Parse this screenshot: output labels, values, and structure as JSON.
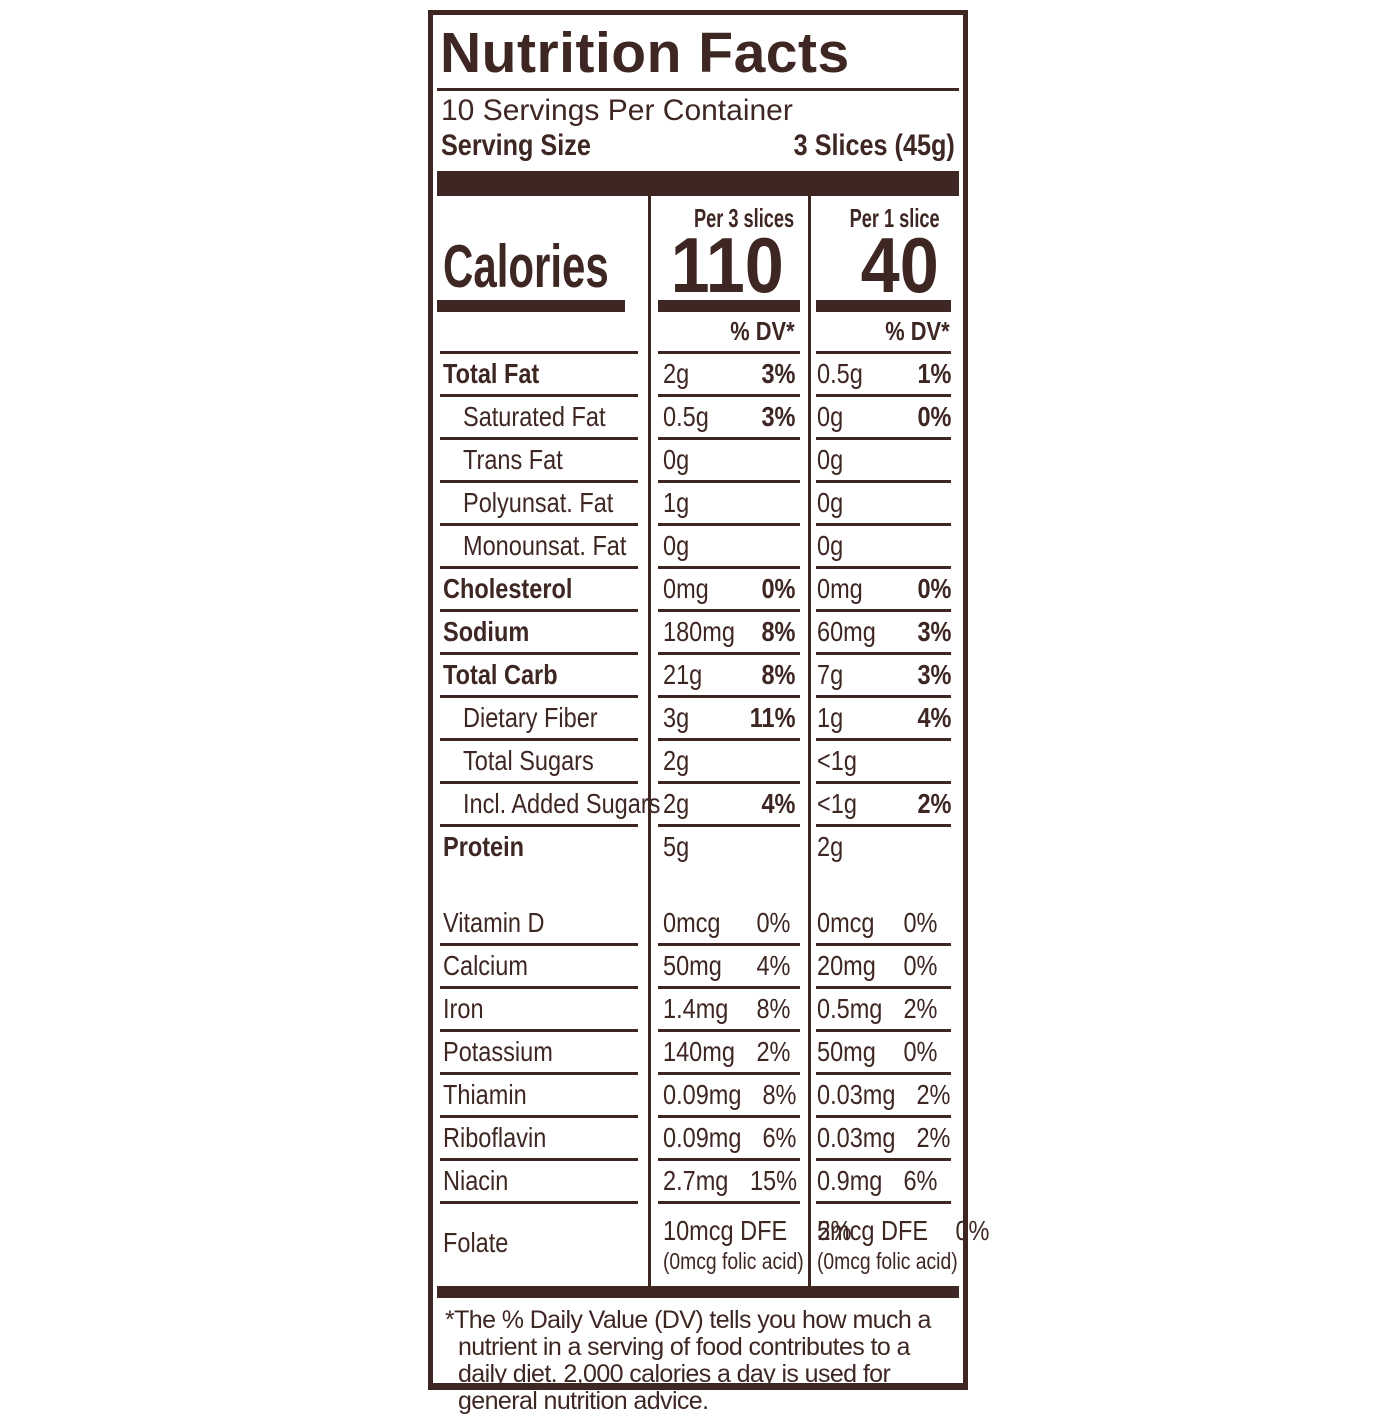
{
  "colors": {
    "ink": "#3E2723",
    "background": "#FFFFFF"
  },
  "label": {
    "title": "Nutrition Facts",
    "servings_per_container": "10 Servings Per Container",
    "serving_size": {
      "label": "Serving Size",
      "value": "3 Slices (45g)"
    },
    "calories_word": "Calories",
    "dv_header": "% DV*",
    "per3": {
      "header": "Per 3 slices",
      "calories": "110"
    },
    "per1": {
      "header": "Per 1 slice",
      "calories": "40"
    },
    "rows": [
      {
        "name": "Total Fat",
        "bold": true,
        "indent": false,
        "per3_amount": "2g",
        "per3_dv": "3%",
        "per1_amount": "0.5g",
        "per1_dv": "1%"
      },
      {
        "name": "Saturated Fat",
        "bold": false,
        "indent": true,
        "per3_amount": "0.5g",
        "per3_dv": "3%",
        "per1_amount": "0g",
        "per1_dv": "0%"
      },
      {
        "name": "Trans Fat",
        "bold": false,
        "indent": true,
        "per3_amount": "0g",
        "per3_dv": "",
        "per1_amount": "0g",
        "per1_dv": ""
      },
      {
        "name": "Polyunsat. Fat",
        "bold": false,
        "indent": true,
        "per3_amount": "1g",
        "per3_dv": "",
        "per1_amount": "0g",
        "per1_dv": ""
      },
      {
        "name": "Monounsat. Fat",
        "bold": false,
        "indent": true,
        "per3_amount": "0g",
        "per3_dv": "",
        "per1_amount": "0g",
        "per1_dv": ""
      },
      {
        "name": "Cholesterol",
        "bold": true,
        "indent": false,
        "per3_amount": "0mg",
        "per3_dv": "0%",
        "per1_amount": "0mg",
        "per1_dv": "0%"
      },
      {
        "name": "Sodium",
        "bold": true,
        "indent": false,
        "per3_amount": "180mg",
        "per3_dv": "8%",
        "per1_amount": "60mg",
        "per1_dv": "3%"
      },
      {
        "name": "Total Carb",
        "bold": true,
        "indent": false,
        "per3_amount": "21g",
        "per3_dv": "8%",
        "per1_amount": "7g",
        "per1_dv": "3%"
      },
      {
        "name": "Dietary Fiber",
        "bold": false,
        "indent": true,
        "per3_amount": "3g",
        "per3_dv": "11%",
        "per1_amount": "1g",
        "per1_dv": "4%"
      },
      {
        "name": "Total Sugars",
        "bold": false,
        "indent": true,
        "per3_amount": "2g",
        "per3_dv": "",
        "per1_amount": "<1g",
        "per1_dv": ""
      },
      {
        "name": "Incl. Added Sugars",
        "bold": false,
        "indent": true,
        "per3_amount": "2g",
        "per3_dv": "4%",
        "per1_amount": "<1g",
        "per1_dv": "2%"
      },
      {
        "name": "Protein",
        "bold": true,
        "indent": false,
        "per3_amount": "5g",
        "per3_dv": "",
        "per1_amount": "2g",
        "per1_dv": ""
      }
    ],
    "vitamins": [
      {
        "name": "Vitamin D",
        "per3_amount": "0mcg",
        "per3_dv": "0%",
        "per1_amount": "0mcg",
        "per1_dv": "0%"
      },
      {
        "name": "Calcium",
        "per3_amount": "50mg",
        "per3_dv": "4%",
        "per1_amount": "20mg",
        "per1_dv": "0%"
      },
      {
        "name": "Iron",
        "per3_amount": "1.4mg",
        "per3_dv": "8%",
        "per1_amount": "0.5mg",
        "per1_dv": "2%"
      },
      {
        "name": "Potassium",
        "per3_amount": "140mg",
        "per3_dv": "2%",
        "per1_amount": "50mg",
        "per1_dv": "0%"
      },
      {
        "name": "Thiamin",
        "per3_amount": "0.09mg",
        "per3_dv": "8%",
        "per1_amount": "0.03mg",
        "per1_dv": "2%"
      },
      {
        "name": "Riboflavin",
        "per3_amount": "0.09mg",
        "per3_dv": "6%",
        "per1_amount": "0.03mg",
        "per1_dv": "2%"
      },
      {
        "name": "Niacin",
        "per3_amount": "2.7mg",
        "per3_dv": "15%",
        "per1_amount": "0.9mg",
        "per1_dv": "6%"
      },
      {
        "name": "Folate",
        "per3_amount": "10mcg DFE",
        "per3_dv": "2%",
        "per1_amount": "5mcg DFE",
        "per1_dv": "0%",
        "per3_note": "(0mcg folic acid)",
        "per1_note": "(0mcg folic acid)"
      }
    ],
    "footnote": "*The % Daily Value (DV) tells you how much a nutrient in a serving of food contributes to a daily diet. 2,000 calories a day is used for general nutrition advice."
  }
}
